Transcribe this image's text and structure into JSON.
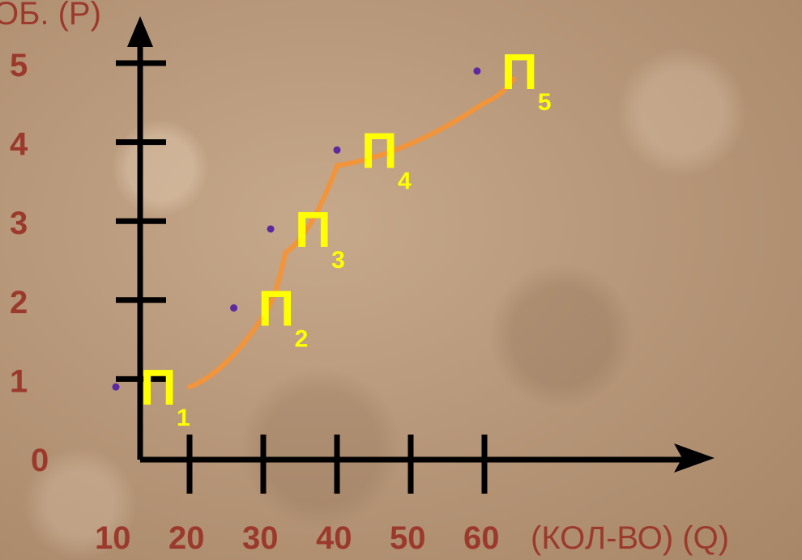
{
  "chart_data": {
    "type": "line",
    "ylabel": "ОБ. (Р)",
    "xlabel": "(КОЛ-ВО) (Q)",
    "x_tick_labels": [
      "10",
      "20",
      "30",
      "40",
      "50",
      "60"
    ],
    "y_tick_labels": [
      "0",
      "1",
      "2",
      "3",
      "4",
      "5"
    ],
    "series": [
      {
        "x": [
          20,
          30,
          33,
          40,
          60,
          64
        ],
        "y": [
          0.9,
          1.8,
          2.6,
          3.7,
          4.5,
          4.8
        ]
      }
    ],
    "points": [
      {
        "label": "П",
        "sub": "1",
        "x": 10,
        "y": 0.9
      },
      {
        "label": "П",
        "sub": "2",
        "x": 26,
        "y": 1.9
      },
      {
        "label": "П",
        "sub": "3",
        "x": 31,
        "y": 2.9
      },
      {
        "label": "П",
        "sub": "4",
        "x": 40,
        "y": 3.9
      },
      {
        "label": "П",
        "sub": "5",
        "x": 59,
        "y": 4.9
      }
    ],
    "colors": {
      "curve": "#f2943a",
      "axis": "#000000",
      "point": "#5b2aa0",
      "label": "#ffff00",
      "text": "#9b3a2c"
    }
  }
}
